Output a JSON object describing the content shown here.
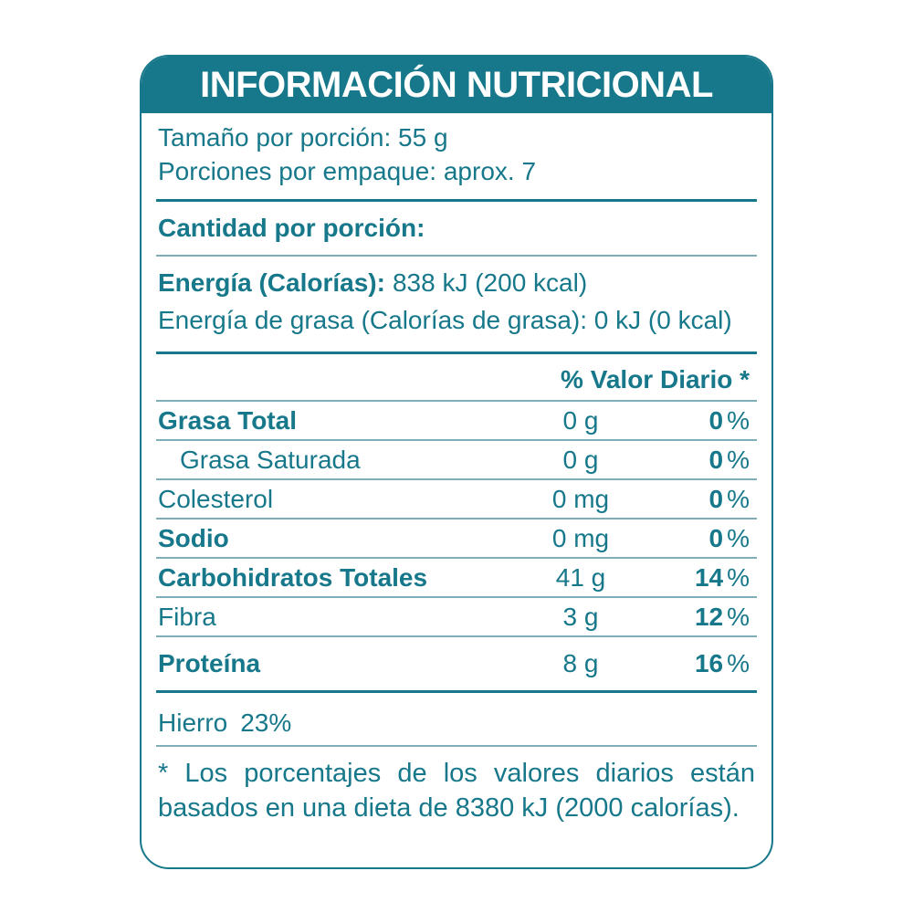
{
  "colors": {
    "teal": "#16788A",
    "thin_line": "#7FAEB9",
    "header_text": "#FFFFFF",
    "background": "#FFFFFF"
  },
  "header": {
    "title": "INFORMACIÓN NUTRICIONAL"
  },
  "serving": {
    "size_line": "Tamaño por porción: 55 g",
    "per_pack_line": "Porciones por empaque: aprox. 7"
  },
  "amount_heading": "Cantidad por porción:",
  "energy": {
    "label": "Energía (Calorías):",
    "value": "838 kJ (200 kcal)",
    "fat_line": "Energía de grasa (Calorías de grasa): 0 kJ (0 kcal)"
  },
  "table": {
    "dv_header": "% Valor Diario *",
    "percent_sign": "%",
    "rows": [
      {
        "label": "Grasa Total",
        "amount": "0 g",
        "dv": "0"
      },
      {
        "label": "Grasa Saturada",
        "amount": "0 g",
        "dv": "0"
      },
      {
        "label": "Colesterol",
        "amount": "0 mg",
        "dv": "0"
      },
      {
        "label": "Sodio",
        "amount": "0 mg",
        "dv": "0"
      },
      {
        "label": "Carbohidratos Totales",
        "amount": "41 g",
        "dv": "14"
      },
      {
        "label": "Fibra",
        "amount": "3 g",
        "dv": "12"
      },
      {
        "label": "Proteína",
        "amount": "8 g",
        "dv": "16"
      }
    ]
  },
  "minerals": {
    "name": "Hierro",
    "value": "23%"
  },
  "footnote": "* Los porcentajes de los valores diarios están basados en una dieta de 8380 kJ (2000 calorías)."
}
